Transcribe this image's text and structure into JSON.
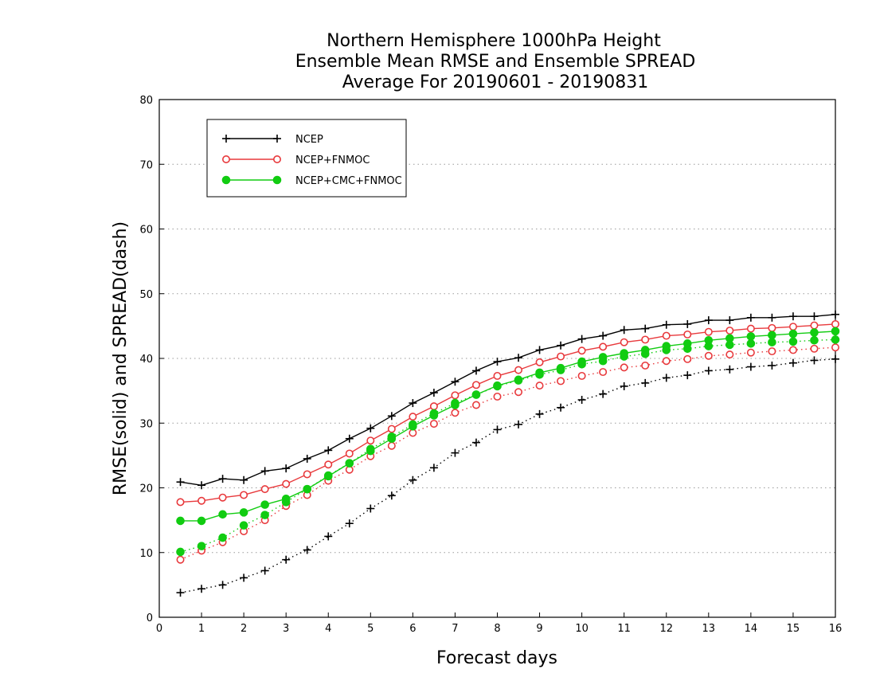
{
  "chart_data": {
    "type": "line",
    "title_lines": [
      "Northern Hemisphere 1000hPa Height",
      "Ensemble Mean RMSE and Ensemble SPREAD",
      "Average For 20190601 - 20190831"
    ],
    "xlabel": "Forecast days",
    "ylabel": "RMSE(solid) and SPREAD(dash)",
    "xlim": [
      0,
      16
    ],
    "ylim": [
      0,
      80
    ],
    "x_ticks": [
      "0",
      "1",
      "2",
      "3",
      "4",
      "5",
      "6",
      "7",
      "8",
      "9",
      "10",
      "11",
      "12",
      "13",
      "14",
      "15",
      "16"
    ],
    "y_ticks": [
      "0",
      "10",
      "20",
      "30",
      "40",
      "50",
      "60",
      "70",
      "80"
    ],
    "grid": "horizontal dotted",
    "legend_position": "top-left",
    "x": [
      0.5,
      1,
      1.5,
      2,
      2.5,
      3,
      3.5,
      4,
      4.5,
      5,
      5.5,
      6,
      6.5,
      7,
      7.5,
      8,
      8.5,
      9,
      9.5,
      10,
      10.5,
      11,
      11.5,
      12,
      12.5,
      13,
      13.5,
      14,
      14.5,
      15,
      15.5,
      16
    ],
    "series": [
      {
        "name": "NCEP",
        "color": "#000000",
        "marker": "plus",
        "rmse": [
          20.9,
          20.4,
          21.4,
          21.2,
          22.6,
          23.0,
          24.5,
          25.8,
          27.6,
          29.2,
          31.1,
          33.1,
          34.7,
          36.4,
          38.1,
          39.5,
          40.1,
          41.3,
          42.0,
          43.0,
          43.5,
          44.4,
          44.6,
          45.2,
          45.3,
          45.9,
          45.9,
          46.3,
          46.3,
          46.5,
          46.5,
          46.8
        ],
        "spread": [
          3.8,
          4.4,
          5.0,
          6.1,
          7.2,
          8.9,
          10.4,
          12.5,
          14.5,
          16.8,
          18.8,
          21.2,
          23.1,
          25.4,
          27.0,
          29.0,
          29.8,
          31.4,
          32.4,
          33.6,
          34.5,
          35.7,
          36.2,
          37.0,
          37.4,
          38.1,
          38.3,
          38.7,
          38.9,
          39.3,
          39.7,
          39.9
        ]
      },
      {
        "name": "NCEP+FNMOC",
        "color": "#e8393c",
        "marker": "open-circle",
        "rmse": [
          17.8,
          18.0,
          18.5,
          18.9,
          19.8,
          20.6,
          22.1,
          23.6,
          25.3,
          27.3,
          29.1,
          31.0,
          32.6,
          34.3,
          35.9,
          37.3,
          38.2,
          39.4,
          40.3,
          41.2,
          41.8,
          42.5,
          42.9,
          43.5,
          43.7,
          44.1,
          44.3,
          44.6,
          44.7,
          44.9,
          45.1,
          45.3
        ],
        "spread": [
          8.9,
          10.3,
          11.6,
          13.3,
          15.0,
          17.2,
          18.9,
          21.1,
          22.8,
          24.9,
          26.5,
          28.5,
          29.9,
          31.6,
          32.8,
          34.1,
          34.8,
          35.8,
          36.5,
          37.3,
          37.9,
          38.6,
          38.9,
          39.6,
          39.9,
          40.4,
          40.6,
          40.9,
          41.1,
          41.3,
          41.5,
          41.7
        ]
      },
      {
        "name": "NCEP+CMC+FNMOC",
        "color": "#11cc11",
        "marker": "filled-circle",
        "rmse": [
          14.9,
          14.9,
          15.9,
          16.2,
          17.4,
          18.3,
          19.8,
          21.8,
          23.8,
          25.7,
          27.6,
          29.5,
          31.2,
          32.8,
          34.4,
          35.8,
          36.7,
          37.8,
          38.5,
          39.5,
          40.2,
          40.8,
          41.3,
          41.9,
          42.3,
          42.8,
          43.1,
          43.4,
          43.6,
          43.8,
          44.0,
          44.2
        ],
        "spread": [
          10.1,
          11.0,
          12.3,
          14.2,
          15.8,
          17.8,
          19.8,
          21.9,
          23.8,
          26.0,
          27.9,
          29.8,
          31.5,
          33.1,
          34.4,
          35.7,
          36.6,
          37.5,
          38.2,
          39.1,
          39.6,
          40.3,
          40.7,
          41.3,
          41.5,
          41.9,
          42.1,
          42.3,
          42.5,
          42.6,
          42.8,
          42.9
        ]
      }
    ]
  }
}
